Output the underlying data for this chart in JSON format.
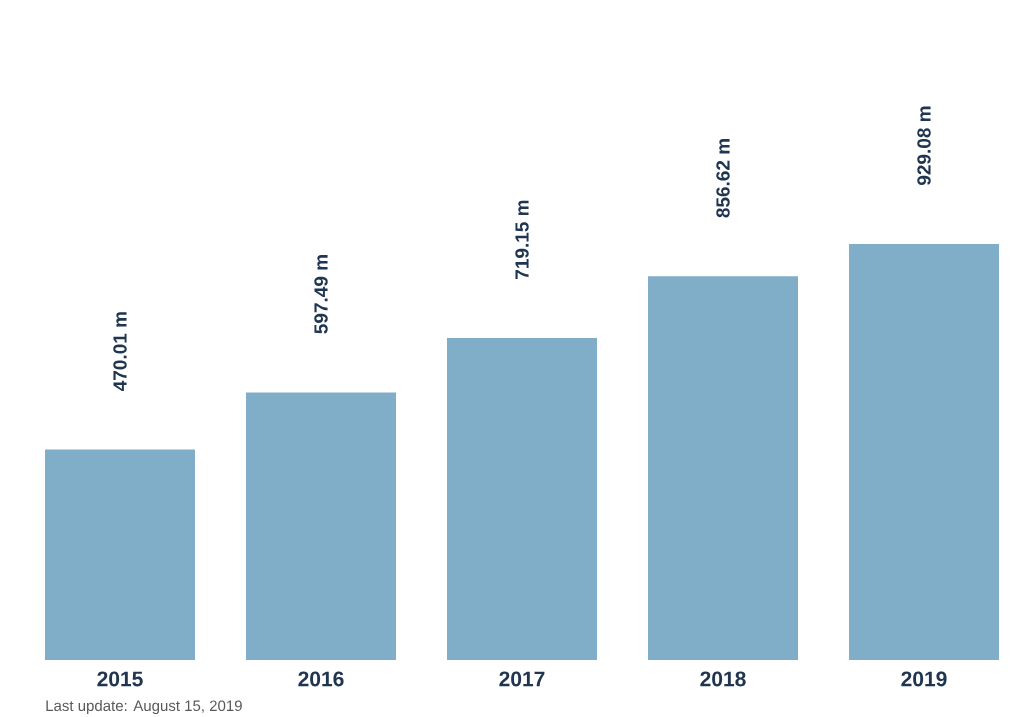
{
  "chart_data": {
    "type": "bar",
    "categories": [
      "2015",
      "2016",
      "2017",
      "2018",
      "2019"
    ],
    "values": [
      470.01,
      597.49,
      719.15,
      856.62,
      929.08
    ],
    "value_labels": [
      "470.01 m",
      "597.49 m",
      "719.15 m",
      "856.62 m",
      "929.08 m"
    ],
    "color": "#80aec8",
    "annotations": [
      "Last update: August 15, 2019"
    ]
  }
}
